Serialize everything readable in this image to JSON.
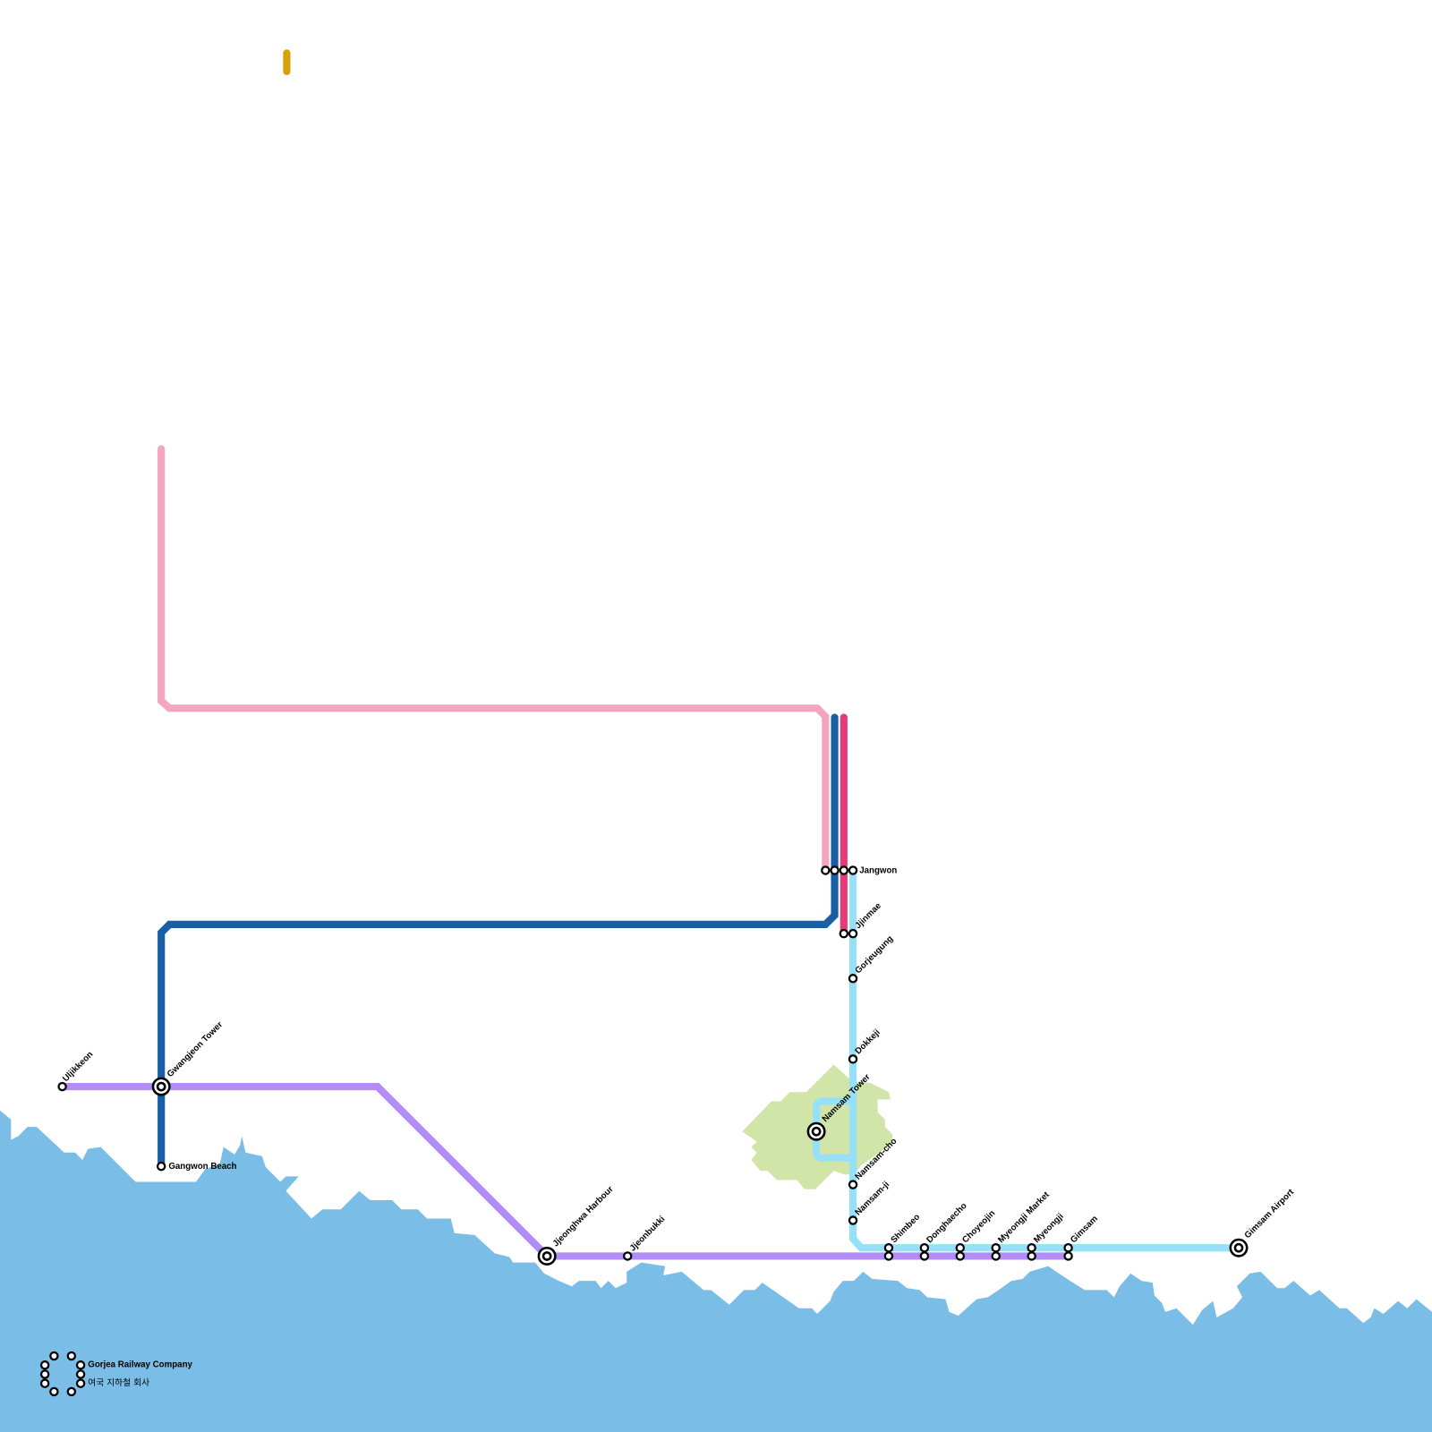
{
  "colors": {
    "water": "#7abde6",
    "park": "#d1e5a8",
    "pink_line": "#f4a6c0",
    "dark_blue_line": "#1a5fa3",
    "magenta_line": "#e43c7a",
    "light_blue_line": "#96e1f8",
    "purple_line": "#b38cf8",
    "gold_line": "#d4a20c"
  },
  "stations": [
    {
      "name": "Uljikkeon",
      "type": "stop"
    },
    {
      "name": "Gwangjeon Tower",
      "type": "interchange"
    },
    {
      "name": "Gangwon Beach",
      "type": "stop"
    },
    {
      "name": "Jjeonghwa Harbour",
      "type": "interchange"
    },
    {
      "name": "Jjeonbukki",
      "type": "stop"
    },
    {
      "name": "Jangwon",
      "type": "stop"
    },
    {
      "name": "Jjinmae",
      "type": "stop"
    },
    {
      "name": "Gorjeugung",
      "type": "stop"
    },
    {
      "name": "Dokkeji",
      "type": "stop"
    },
    {
      "name": "Namsam Tower",
      "type": "interchange"
    },
    {
      "name": "Namsam-cho",
      "type": "stop"
    },
    {
      "name": "Namsam-ji",
      "type": "stop"
    },
    {
      "name": "Shimbeo",
      "type": "stop"
    },
    {
      "name": "Donghaecho",
      "type": "stop"
    },
    {
      "name": "Choyeojin",
      "type": "stop"
    },
    {
      "name": "Myeongji Market",
      "type": "stop"
    },
    {
      "name": "Myeongji",
      "type": "stop"
    },
    {
      "name": "Gimsam",
      "type": "stop"
    },
    {
      "name": "Gimsam Airport",
      "type": "interchange"
    }
  ],
  "legend": {
    "company_name": "Gorjea Railway Company",
    "company_name_korean": "여국 지하철 회사"
  }
}
